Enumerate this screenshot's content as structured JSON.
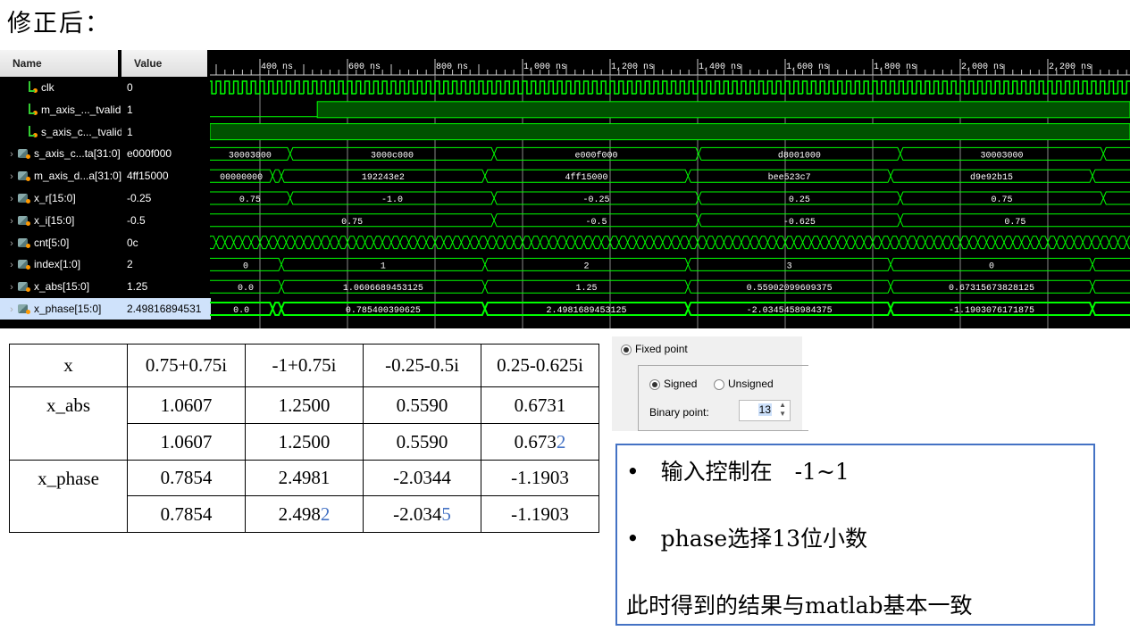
{
  "title": "修正后：",
  "waveform": {
    "headers": {
      "name": "Name",
      "value": "Value"
    },
    "signals": [
      {
        "name": "clk",
        "value": "0",
        "kind": "clk",
        "period_ns": 20
      },
      {
        "name": "m_axis_..._tvalid",
        "value": "1",
        "kind": "bit",
        "rise_ns": 531
      },
      {
        "name": "s_axis_c..._tvalid",
        "value": "1",
        "kind": "bit",
        "rise_ns": 0
      },
      {
        "name": "s_axis_c...ta[31:0]",
        "value": "e000f000",
        "kind": "bus",
        "segments": [
          [
            0,
            469,
            "30003000"
          ],
          [
            469,
            935,
            "3000c000"
          ],
          [
            935,
            1402,
            "e000f000"
          ],
          [
            1402,
            1863,
            "d8001000"
          ],
          [
            1863,
            2327,
            "30003000"
          ],
          [
            2327,
            2600,
            ""
          ]
        ]
      },
      {
        "name": "m_axis_d...a[31:0]",
        "value": "4ff15000",
        "kind": "bus",
        "segments": [
          [
            0,
            429,
            "00000000"
          ],
          [
            429,
            449,
            ""
          ],
          [
            449,
            914,
            "192243e2"
          ],
          [
            914,
            1378,
            "4ff15000"
          ],
          [
            1378,
            1841,
            "bee523c7"
          ],
          [
            1841,
            2302,
            "d9e92b15"
          ],
          [
            2302,
            2600,
            ""
          ]
        ]
      },
      {
        "name": "x_r[15:0]",
        "value": "-0.25",
        "kind": "bus",
        "segments": [
          [
            0,
            469,
            "0.75"
          ],
          [
            469,
            935,
            "-1.0"
          ],
          [
            935,
            1402,
            "-0.25"
          ],
          [
            1402,
            1863,
            "0.25"
          ],
          [
            1863,
            2327,
            "0.75"
          ],
          [
            2327,
            2600,
            ""
          ]
        ]
      },
      {
        "name": "x_i[15:0]",
        "value": "-0.5",
        "kind": "bus",
        "segments": [
          [
            0,
            935,
            "0.75"
          ],
          [
            935,
            1402,
            "-0.5"
          ],
          [
            1402,
            1863,
            "-0.625"
          ],
          [
            1863,
            2600,
            "0.75"
          ]
        ]
      },
      {
        "name": "cnt[5:0]",
        "value": "0c",
        "kind": "count",
        "period_ns": 20
      },
      {
        "name": "index[1:0]",
        "value": "2",
        "kind": "bus",
        "segments": [
          [
            0,
            449,
            "0"
          ],
          [
            449,
            914,
            "1"
          ],
          [
            914,
            1378,
            "2"
          ],
          [
            1378,
            1841,
            "3"
          ],
          [
            1841,
            2302,
            "0"
          ],
          [
            2302,
            2600,
            ""
          ]
        ]
      },
      {
        "name": "x_abs[15:0]",
        "value": "1.25",
        "kind": "bus",
        "segments": [
          [
            0,
            449,
            "0.0"
          ],
          [
            449,
            914,
            "1.0606689453125"
          ],
          [
            914,
            1378,
            "1.25"
          ],
          [
            1378,
            1841,
            "0.55902099609375"
          ],
          [
            1841,
            2302,
            "0.67315673828125"
          ],
          [
            2302,
            2600,
            ""
          ]
        ]
      },
      {
        "name": "x_phase[15:0]",
        "value": "2.49816894531",
        "kind": "bus",
        "selected": true,
        "segments": [
          [
            0,
            429,
            "0.0"
          ],
          [
            429,
            449,
            ""
          ],
          [
            449,
            914,
            "0.785400390625"
          ],
          [
            914,
            1378,
            "2.4981689453125"
          ],
          [
            1378,
            1841,
            "-2.0345458984375"
          ],
          [
            1841,
            2302,
            "-1.1903076171875"
          ],
          [
            2302,
            2600,
            ""
          ]
        ]
      }
    ],
    "time_ticks": [
      "400 ns",
      "600 ns",
      "800 ns",
      "1,000 ns",
      "1,200 ns",
      "1,400 ns",
      "1,600 ns",
      "1,800 ns",
      "2,000 ns",
      "2,200 ns"
    ],
    "colors": {
      "wave": "#00ff00",
      "fill": "#005200",
      "grid": "#888888"
    }
  },
  "table": {
    "rows": [
      [
        [
          "x"
        ],
        [
          "0.75+0.75i"
        ],
        [
          "-1+0.75i"
        ],
        [
          "-0.25-0.5i"
        ],
        [
          "0.25-0.625i"
        ]
      ],
      [
        [
          "x_abs"
        ],
        [
          "1.0607"
        ],
        [
          "1.2500"
        ],
        [
          "0.5590"
        ],
        [
          "0.6731"
        ]
      ],
      [
        [
          "1.0607"
        ],
        [
          "1.2500"
        ],
        [
          "0.5590"
        ],
        [
          "0.673",
          "2"
        ]
      ],
      [
        [
          "x_phase"
        ],
        [
          "0.7854"
        ],
        [
          "2.4981"
        ],
        [
          "-2.0344"
        ],
        [
          "-1.1903"
        ]
      ],
      [
        [
          "0.7854"
        ],
        [
          "2.498",
          "2"
        ],
        [
          "-2.034",
          "5"
        ],
        [
          "-1.1903"
        ]
      ]
    ]
  },
  "fixed_point": {
    "label": "Fixed point",
    "signed": "Signed",
    "unsigned": "Unsigned",
    "binary_point_label": "Binary point:",
    "binary_point": "13"
  },
  "note": {
    "bullet1": "输入控制在　-1~1",
    "bullet2": "phase选择13位小数",
    "summary": "此时得到的结果与matlab基本一致"
  }
}
